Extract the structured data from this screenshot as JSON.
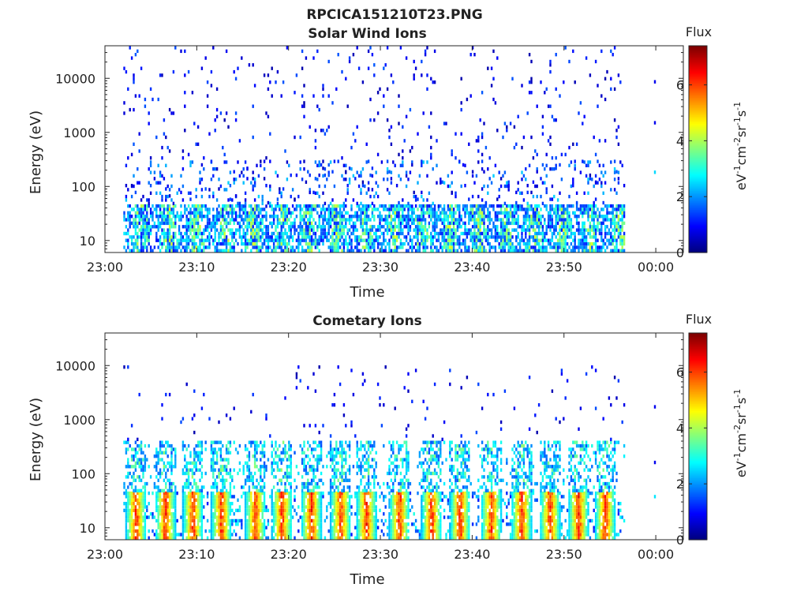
{
  "figure": {
    "title": "RPCICA151210T23.PNG"
  },
  "chart_data": [
    {
      "type": "heatmap",
      "title": "Solar Wind Ions",
      "xlabel": "Time",
      "ylabel": "Energy (eV)",
      "x_tick_labels": [
        "23:00",
        "23:10",
        "23:20",
        "23:30",
        "23:40",
        "23:50",
        "00:00"
      ],
      "x_range_minutes": [
        0,
        63
      ],
      "y_scale": "log",
      "y_tick_labels": [
        "10",
        "100",
        "1000",
        "10000"
      ],
      "y_tick_values": [
        10,
        100,
        1000,
        10000
      ],
      "y_range": [
        6,
        40000
      ],
      "colorbar": {
        "title": "Flux",
        "label": "eV-1cm-2sr-1s-1",
        "label_parts": [
          {
            "t": "eV",
            "sup": false
          },
          {
            "t": "-1",
            "sup": true
          },
          {
            "t": "cm",
            "sup": false
          },
          {
            "t": "-2",
            "sup": true
          },
          {
            "t": "sr",
            "sup": false
          },
          {
            "t": "-1",
            "sup": true
          },
          {
            "t": "s",
            "sup": false
          },
          {
            "t": "-1",
            "sup": true
          }
        ],
        "range": [
          0,
          7.4
        ],
        "tick_labels": [
          "0",
          "2",
          "4",
          "6"
        ],
        "tick_values": [
          0,
          2,
          4,
          6
        ],
        "colormap": "jet"
      },
      "data_extent_minutes": [
        2,
        56.5
      ],
      "main_band": {
        "energy_low": 6,
        "energy_high": 45,
        "value_range": [
          1,
          4.5
        ]
      },
      "scatter_energy_range": [
        40,
        35000
      ],
      "scatter_value_range": [
        0.3,
        1.6
      ],
      "mid_band": {
        "energy_low": 45,
        "energy_high": 300,
        "value_range": [
          0.5,
          2.5
        ]
      },
      "late_points": [
        {
          "minute": 59.8,
          "energy": 8000,
          "value": 0.8
        },
        {
          "minute": 59.8,
          "energy": 1400,
          "value": 0.8
        },
        {
          "minute": 59.8,
          "energy": 170,
          "value": 2.5
        }
      ]
    },
    {
      "type": "heatmap",
      "title": "Cometary Ions",
      "xlabel": "Time",
      "ylabel": "Energy (eV)",
      "x_tick_labels": [
        "23:00",
        "23:10",
        "23:20",
        "23:30",
        "23:40",
        "23:50",
        "00:00"
      ],
      "x_range_minutes": [
        0,
        63
      ],
      "y_scale": "log",
      "y_tick_labels": [
        "10",
        "100",
        "1000",
        "10000"
      ],
      "y_tick_values": [
        10,
        100,
        1000,
        10000
      ],
      "y_range": [
        6,
        40000
      ],
      "colorbar": {
        "title": "Flux",
        "label": "eV-1cm-2sr-1s-1",
        "label_parts": [
          {
            "t": "eV",
            "sup": false
          },
          {
            "t": "-1",
            "sup": true
          },
          {
            "t": "cm",
            "sup": false
          },
          {
            "t": "-2",
            "sup": true
          },
          {
            "t": "sr",
            "sup": false
          },
          {
            "t": "-1",
            "sup": true
          },
          {
            "t": "s",
            "sup": false
          },
          {
            "t": "-1",
            "sup": true
          }
        ],
        "range": [
          0,
          7.4
        ],
        "tick_labels": [
          "0",
          "2",
          "4",
          "6"
        ],
        "tick_values": [
          0,
          2,
          4,
          6
        ],
        "colormap": "jet"
      },
      "data_extent_minutes": [
        2,
        56.5
      ],
      "burst_minutes": [
        3.3,
        6.5,
        9.5,
        12.6,
        16.3,
        19.2,
        22.4,
        25.6,
        28.4,
        32.0,
        35.5,
        38.6,
        42.0,
        45.3,
        48.4,
        51.5,
        54.4
      ],
      "burst_energy_range": [
        6,
        45
      ],
      "burst_peak_value": 6.8,
      "upper_band": {
        "energy_low": 45,
        "energy_high": 400,
        "value_range": [
          1.5,
          4.0
        ]
      },
      "scatter_energy_range": [
        400,
        10000
      ],
      "scatter_value_range": [
        0.3,
        1.5
      ],
      "late_points": [
        {
          "minute": 59.8,
          "energy": 1600,
          "value": 0.8
        },
        {
          "minute": 59.8,
          "energy": 150,
          "value": 0.8
        },
        {
          "minute": 59.8,
          "energy": 35,
          "value": 2.6
        }
      ]
    }
  ]
}
